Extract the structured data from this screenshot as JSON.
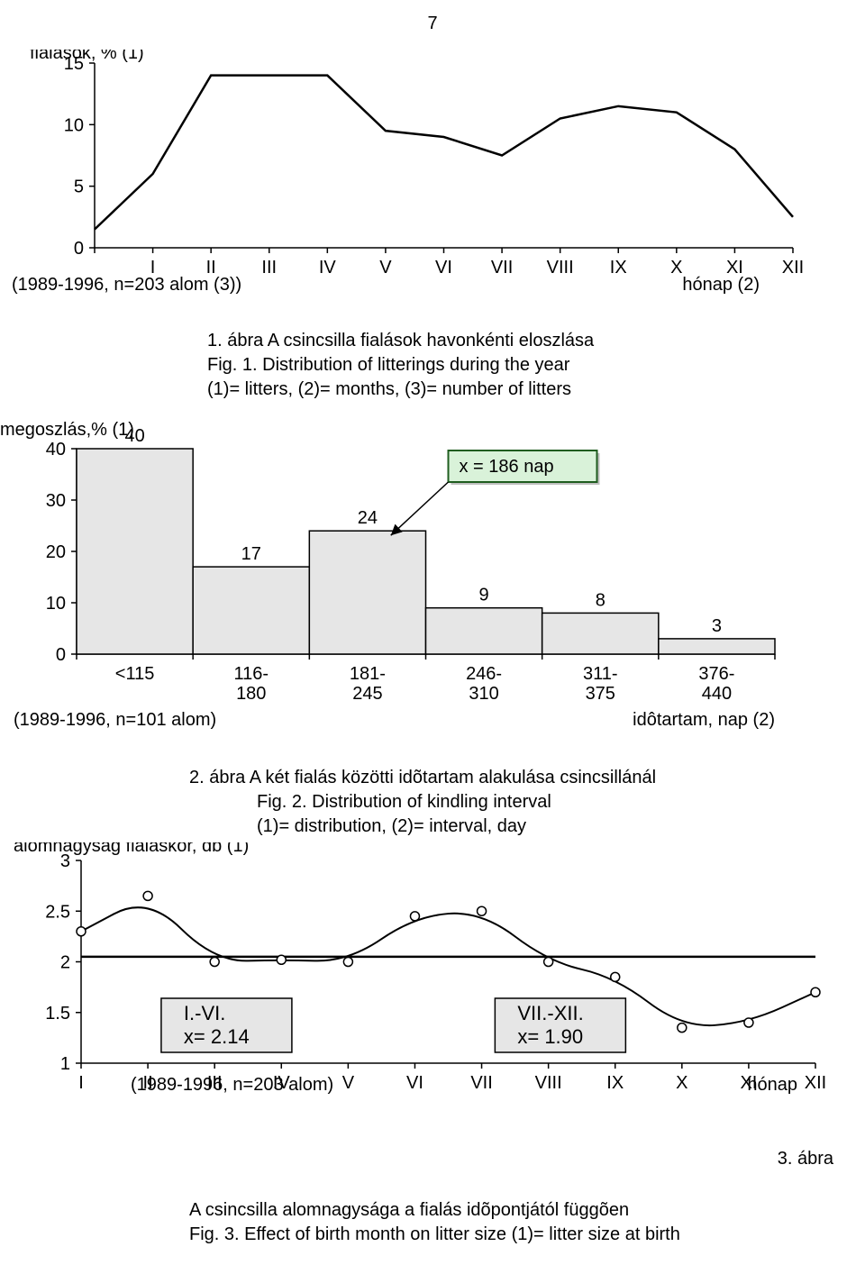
{
  "page_number": "7",
  "chart1": {
    "type": "line",
    "title": "fialások, % (1)",
    "categories": [
      "I",
      "II",
      "III",
      "IV",
      "V",
      "VI",
      "VII",
      "VIII",
      "IX",
      "X",
      "XI",
      "XII"
    ],
    "values": [
      1.5,
      6,
      14,
      14,
      14,
      9.5,
      9,
      7.5,
      10.5,
      11.5,
      11,
      8,
      2.5
    ],
    "x_left_of_first": true,
    "note_left": "(1989-1996, n=203 alom (3))",
    "note_right": "hónap (2)",
    "ylim": [
      0,
      15
    ],
    "yticks": [
      0,
      5,
      10,
      15
    ],
    "line_color": "#000000",
    "line_width": 2.5,
    "axis_color": "#000000",
    "tick_color": "#000000",
    "tick_fontsize": 20,
    "title_fontsize": 20,
    "background": "#ffffff"
  },
  "caption1": {
    "line1": "1. ábra A csincsilla fialások havonkénti eloszlása",
    "line2": "Fig. 1. Distribution of litterings during the year",
    "line3": "(1)= litters, (2)= months, (3)= number of litters"
  },
  "chart2": {
    "type": "bar",
    "title": "megoszlás,% (1)",
    "categories": [
      "<115",
      "116-\n180",
      "181-\n245",
      "246-\n310",
      "311-\n375",
      "376-\n440"
    ],
    "values": [
      40,
      17,
      24,
      9,
      8,
      3
    ],
    "bar_fill": "#e6e6e6",
    "bar_stroke": "#000000",
    "bar_stroke_width": 1.5,
    "ylim": [
      0,
      40
    ],
    "yticks": [
      0,
      10,
      20,
      30,
      40
    ],
    "axis_color": "#000000",
    "tick_fontsize": 20,
    "title_fontsize": 20,
    "background": "#ffffff",
    "callout": {
      "text": "x = 186 nap",
      "box_fill": "#d9f2d9",
      "box_stroke": "#1f5d1f",
      "box_stroke_width": 2,
      "font_size": 20,
      "arrow_from_box_to_bar_index": 2
    },
    "note_left": "(1989-1996, n=101 alom)",
    "note_right": "idôtartam, nap (2)"
  },
  "caption2": {
    "line1": "2. ábra A két fialás közötti idõtartam alakulása csincsillánál",
    "line2": "Fig. 2. Distribution of kindling interval",
    "line3": "(1)= distribution, (2)= interval, day"
  },
  "chart3": {
    "type": "line_markers",
    "title": "alomnagyság fialáskor, db (1)",
    "categories": [
      "I",
      "II",
      "III",
      "IV",
      "V",
      "VI",
      "VII",
      "VIII",
      "IX",
      "X",
      "XI",
      "XII"
    ],
    "values": [
      2.3,
      2.65,
      2.0,
      2.02,
      2.0,
      2.45,
      2.5,
      2.0,
      1.85,
      1.35,
      1.4,
      1.7
    ],
    "ylim": [
      1,
      3
    ],
    "yticks": [
      1,
      1.5,
      2,
      2.5,
      3
    ],
    "ytick_labels": [
      "1",
      "1.5",
      "2",
      "2.5",
      "3"
    ],
    "line_color": "#000000",
    "line_width": 2,
    "marker_fill": "#ffffff",
    "marker_stroke": "#000000",
    "marker_radius": 5,
    "axis_color": "#000000",
    "tick_fontsize": 20,
    "title_fontsize": 20,
    "background": "#ffffff",
    "hline_value": 2.05,
    "hline_color": "#000000",
    "hline_width": 2.5,
    "box1": {
      "l1": "I.-VI.",
      "l2": "x= 2.14",
      "fill": "#e6e6e6",
      "stroke": "#000000"
    },
    "box2": {
      "l1": "VII.-XII.",
      "l2": "x= 1.90",
      "fill": "#e6e6e6",
      "stroke": "#000000"
    },
    "note_left": "(1989-1996, n=203 alom)",
    "note_right": "hónap"
  },
  "footer": {
    "right": "3. ábra",
    "line1": "A csincsilla alomnagysága a fialás idõpontjától függõen",
    "line2": "Fig. 3. Effect of birth month on litter size (1)= litter size at birth"
  }
}
